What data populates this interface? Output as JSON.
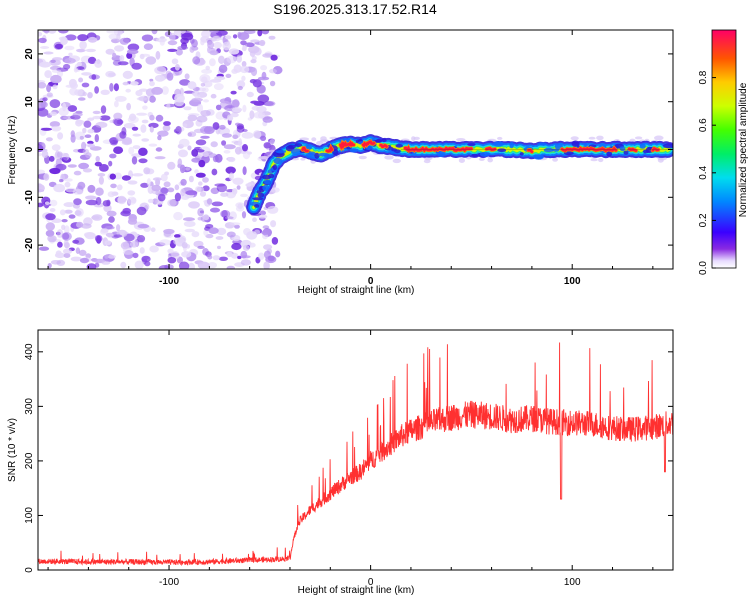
{
  "chart_data": [
    {
      "type": "heatmap",
      "title": "S196.2025.313.17.52.R14",
      "xlabel": "Height of straight line (km)",
      "ylabel": "Frequency (Hz)",
      "xlim": [
        -165,
        150
      ],
      "ylim": [
        -25,
        25
      ],
      "xticks": [
        -100,
        0,
        100
      ],
      "xtick_labels": [
        "-100",
        "0",
        "100"
      ],
      "yticks": [
        -20,
        -10,
        0,
        10,
        20
      ],
      "ytick_labels": [
        "-20",
        "-10",
        "0",
        "10",
        "20"
      ],
      "noise_region": {
        "x": [
          -165,
          -50
        ],
        "description": "scattered low-amplitude purple noise"
      },
      "ridge": {
        "x": [
          -58,
          -55,
          -52,
          -50,
          -48,
          -45,
          -42,
          -40,
          -35,
          -30,
          -25,
          -20,
          -15,
          -10,
          -5,
          0,
          5,
          10,
          15,
          20,
          30,
          40,
          50,
          60,
          70,
          80,
          90,
          100,
          110,
          120,
          130,
          140,
          148
        ],
        "y": [
          -12,
          -9,
          -7,
          -5,
          -3,
          -1.5,
          -0.8,
          -0.3,
          0.3,
          -0.3,
          -1,
          0,
          0.8,
          1.2,
          0.8,
          1.5,
          0.8,
          0.6,
          0.2,
          0,
          0,
          0,
          0,
          0,
          0,
          -0.3,
          0,
          0,
          0,
          0,
          0,
          0,
          0
        ]
      },
      "colorbar": {
        "label": "Normalized spectral amplitude",
        "range": [
          0.0,
          1.0
        ],
        "ticks": [
          0.0,
          0.2,
          0.4,
          0.6,
          0.8
        ],
        "tick_labels": [
          "0.0",
          "0.2",
          "0.4",
          "0.6",
          "0.8"
        ]
      }
    },
    {
      "type": "line",
      "xlabel": "Height of straight line (km)",
      "ylabel": "SNR (10 * v/v)",
      "xlim": [
        -165,
        150
      ],
      "ylim": [
        0,
        440
      ],
      "xticks": [
        -100,
        0,
        100
      ],
      "xtick_labels": [
        "-100",
        "0",
        "100"
      ],
      "yticks": [
        0,
        100,
        200,
        300,
        400
      ],
      "ytick_labels": [
        "0",
        "100",
        "200",
        "300",
        "400"
      ],
      "color": "#ff3030",
      "series": [
        {
          "name": "SNR",
          "x": [
            -165,
            -140,
            -120,
            -100,
            -80,
            -60,
            -45,
            -40,
            -38,
            -35,
            -30,
            -25,
            -20,
            -15,
            -10,
            -5,
            0,
            5,
            10,
            15,
            20,
            30,
            40,
            50,
            60,
            70,
            80,
            90,
            100,
            110,
            120,
            130,
            140,
            150
          ],
          "values": [
            16,
            15,
            15,
            14,
            15,
            18,
            20,
            22,
            60,
            90,
            110,
            125,
            140,
            155,
            170,
            180,
            200,
            215,
            230,
            245,
            255,
            270,
            280,
            285,
            282,
            275,
            278,
            272,
            270,
            268,
            260,
            258,
            262,
            270
          ]
        }
      ]
    }
  ]
}
